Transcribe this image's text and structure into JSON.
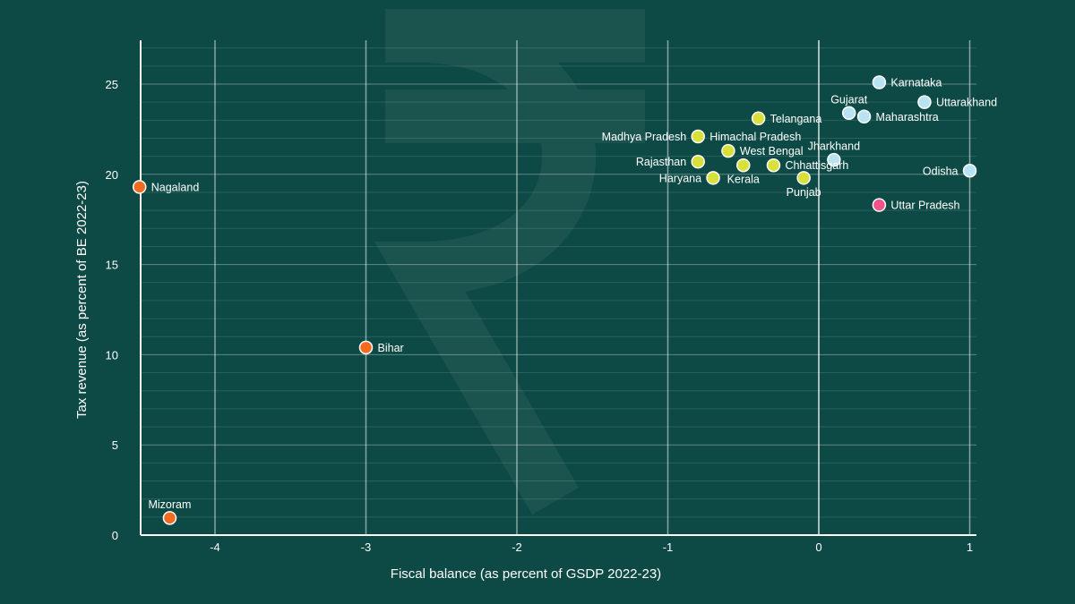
{
  "chart_data": {
    "type": "scatter",
    "title": "",
    "xlabel": "Fiscal balance (as percent of GSDP 2022-23)",
    "ylabel": "Tax revenue (as percent of BE 2022-23)",
    "xlim": [
      -4.5,
      1.05
    ],
    "ylim": [
      0,
      27
    ],
    "x_ticks": [
      -4,
      -3,
      -2,
      -1,
      0,
      1
    ],
    "y_ticks": [
      0,
      5,
      10,
      15,
      20,
      25
    ],
    "colors": {
      "background": "#0d4a45",
      "orange": "#f26b21",
      "yellow": "#d8e03a",
      "lightblue": "#b7e3f2",
      "pink": "#ef5389"
    },
    "points": [
      {
        "label": "Nagaland",
        "x": -4.5,
        "y": 19.3,
        "color": "orange",
        "pos": "right"
      },
      {
        "label": "Mizoram",
        "x": -4.3,
        "y": 0.95,
        "color": "orange",
        "pos": "above"
      },
      {
        "label": "Bihar",
        "x": -3.0,
        "y": 10.4,
        "color": "orange",
        "pos": "right"
      },
      {
        "label": "Karnataka",
        "x": 0.4,
        "y": 25.1,
        "color": "lightblue",
        "pos": "right"
      },
      {
        "label": "Uttarakhand",
        "x": 0.7,
        "y": 24.0,
        "color": "lightblue",
        "pos": "right"
      },
      {
        "label": "Gujarat",
        "x": 0.2,
        "y": 23.4,
        "color": "lightblue",
        "pos": "above"
      },
      {
        "label": "Maharashtra",
        "x": 0.3,
        "y": 23.2,
        "color": "lightblue",
        "pos": "right"
      },
      {
        "label": "Jharkhand",
        "x": 0.1,
        "y": 20.8,
        "color": "lightblue",
        "pos": "above"
      },
      {
        "label": "Odisha",
        "x": 1.0,
        "y": 20.2,
        "color": "lightblue",
        "pos": "left"
      },
      {
        "label": "Telangana",
        "x": -0.4,
        "y": 23.1,
        "color": "yellow",
        "pos": "right"
      },
      {
        "label": "Madhya Pradesh",
        "x": -0.8,
        "y": 22.1,
        "color": "yellow",
        "pos": "left"
      },
      {
        "label": "Himachal Pradesh",
        "x": -0.8,
        "y": 22.1,
        "color": "yellow",
        "pos": "right-only"
      },
      {
        "label": "West Bengal",
        "x": -0.6,
        "y": 21.3,
        "color": "yellow",
        "pos": "right"
      },
      {
        "label": "Rajasthan",
        "x": -0.8,
        "y": 20.7,
        "color": "yellow",
        "pos": "left"
      },
      {
        "label": "Haryana",
        "x": -0.7,
        "y": 19.8,
        "color": "yellow",
        "pos": "left"
      },
      {
        "label": "Kerala",
        "x": -0.5,
        "y": 20.5,
        "color": "yellow",
        "pos": "below"
      },
      {
        "label": "Chhattisgarh",
        "x": -0.3,
        "y": 20.5,
        "color": "yellow",
        "pos": "right"
      },
      {
        "label": "Punjab",
        "x": -0.1,
        "y": 19.8,
        "color": "yellow",
        "pos": "below"
      },
      {
        "label": "Uttar Pradesh",
        "x": 0.4,
        "y": 18.3,
        "color": "pink",
        "pos": "right"
      }
    ]
  }
}
